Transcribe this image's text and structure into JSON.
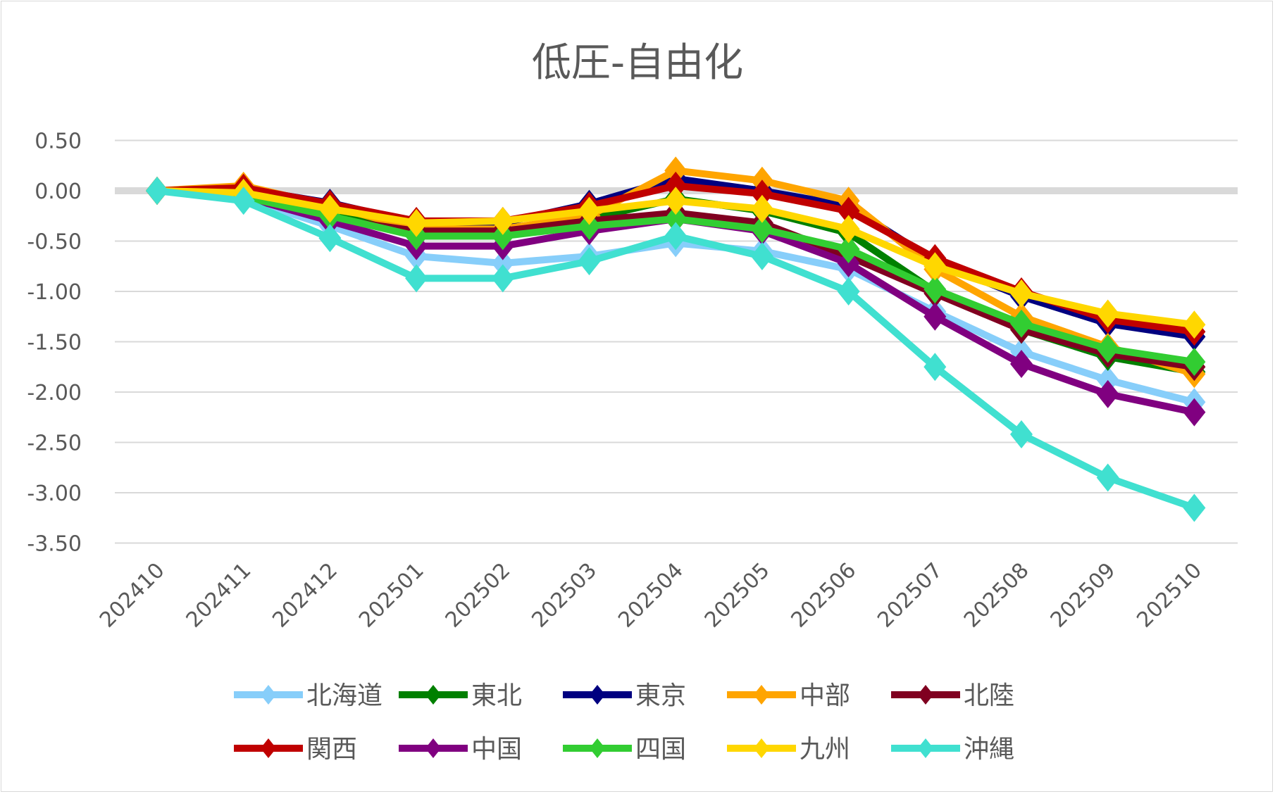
{
  "chart_data": {
    "type": "line",
    "title": "低圧-自由化",
    "xlabel": "",
    "ylabel": "",
    "ylim": [
      -3.5,
      0.5
    ],
    "yticks": [
      "0.50",
      "0.00",
      "-0.50",
      "-1.00",
      "-1.50",
      "-2.00",
      "-2.50",
      "-3.00",
      "-3.50"
    ],
    "ytick_values": [
      0.5,
      0,
      -0.5,
      -1,
      -1.5,
      -2,
      -2.5,
      -3,
      -3.5
    ],
    "grid": true,
    "legend_position": "bottom",
    "categories": [
      "202410",
      "202411",
      "202412",
      "202501",
      "202502",
      "202503",
      "202504",
      "202505",
      "202506",
      "202507",
      "202508",
      "202509",
      "202510"
    ],
    "series": [
      {
        "name": "北海道",
        "color": "#87CEFA",
        "values": [
          0,
          -0.08,
          -0.35,
          -0.65,
          -0.72,
          -0.65,
          -0.52,
          -0.6,
          -0.78,
          -1.2,
          -1.6,
          -1.88,
          -2.1
        ]
      },
      {
        "name": "東北",
        "color": "#008000",
        "values": [
          0,
          -0.05,
          -0.22,
          -0.45,
          -0.45,
          -0.28,
          -0.08,
          -0.2,
          -0.42,
          -1.0,
          -1.38,
          -1.65,
          -1.8
        ]
      },
      {
        "name": "東京",
        "color": "#000080",
        "values": [
          0,
          0.02,
          -0.12,
          -0.32,
          -0.32,
          -0.13,
          0.12,
          0.0,
          -0.15,
          -0.7,
          -1.05,
          -1.32,
          -1.45
        ]
      },
      {
        "name": "中部",
        "color": "#FFA500",
        "values": [
          0,
          0.05,
          -0.15,
          -0.38,
          -0.38,
          -0.25,
          0.2,
          0.1,
          -0.1,
          -0.78,
          -1.25,
          -1.55,
          -1.82
        ]
      },
      {
        "name": "北陸",
        "color": "#800020",
        "values": [
          0,
          -0.04,
          -0.28,
          -0.4,
          -0.4,
          -0.3,
          -0.22,
          -0.32,
          -0.65,
          -1.02,
          -1.38,
          -1.62,
          -1.75
        ]
      },
      {
        "name": "関西",
        "color": "#C00000",
        "values": [
          0,
          0.03,
          -0.13,
          -0.3,
          -0.3,
          -0.15,
          0.05,
          -0.03,
          -0.2,
          -0.67,
          -1.0,
          -1.28,
          -1.4
        ]
      },
      {
        "name": "中国",
        "color": "#800080",
        "values": [
          0,
          -0.06,
          -0.3,
          -0.55,
          -0.55,
          -0.4,
          -0.28,
          -0.4,
          -0.72,
          -1.25,
          -1.72,
          -2.02,
          -2.2
        ]
      },
      {
        "name": "四国",
        "color": "#32CD32",
        "values": [
          0,
          -0.06,
          -0.25,
          -0.45,
          -0.45,
          -0.35,
          -0.28,
          -0.38,
          -0.58,
          -0.98,
          -1.32,
          -1.57,
          -1.7
        ]
      },
      {
        "name": "九州",
        "color": "#FFD700",
        "values": [
          0,
          -0.02,
          -0.18,
          -0.32,
          -0.3,
          -0.2,
          -0.1,
          -0.18,
          -0.38,
          -0.75,
          -1.02,
          -1.22,
          -1.33
        ]
      },
      {
        "name": "沖縄",
        "color": "#40E0D0",
        "values": [
          0,
          -0.1,
          -0.47,
          -0.87,
          -0.87,
          -0.7,
          -0.45,
          -0.65,
          -1.0,
          -1.75,
          -2.42,
          -2.85,
          -3.15
        ]
      }
    ]
  }
}
